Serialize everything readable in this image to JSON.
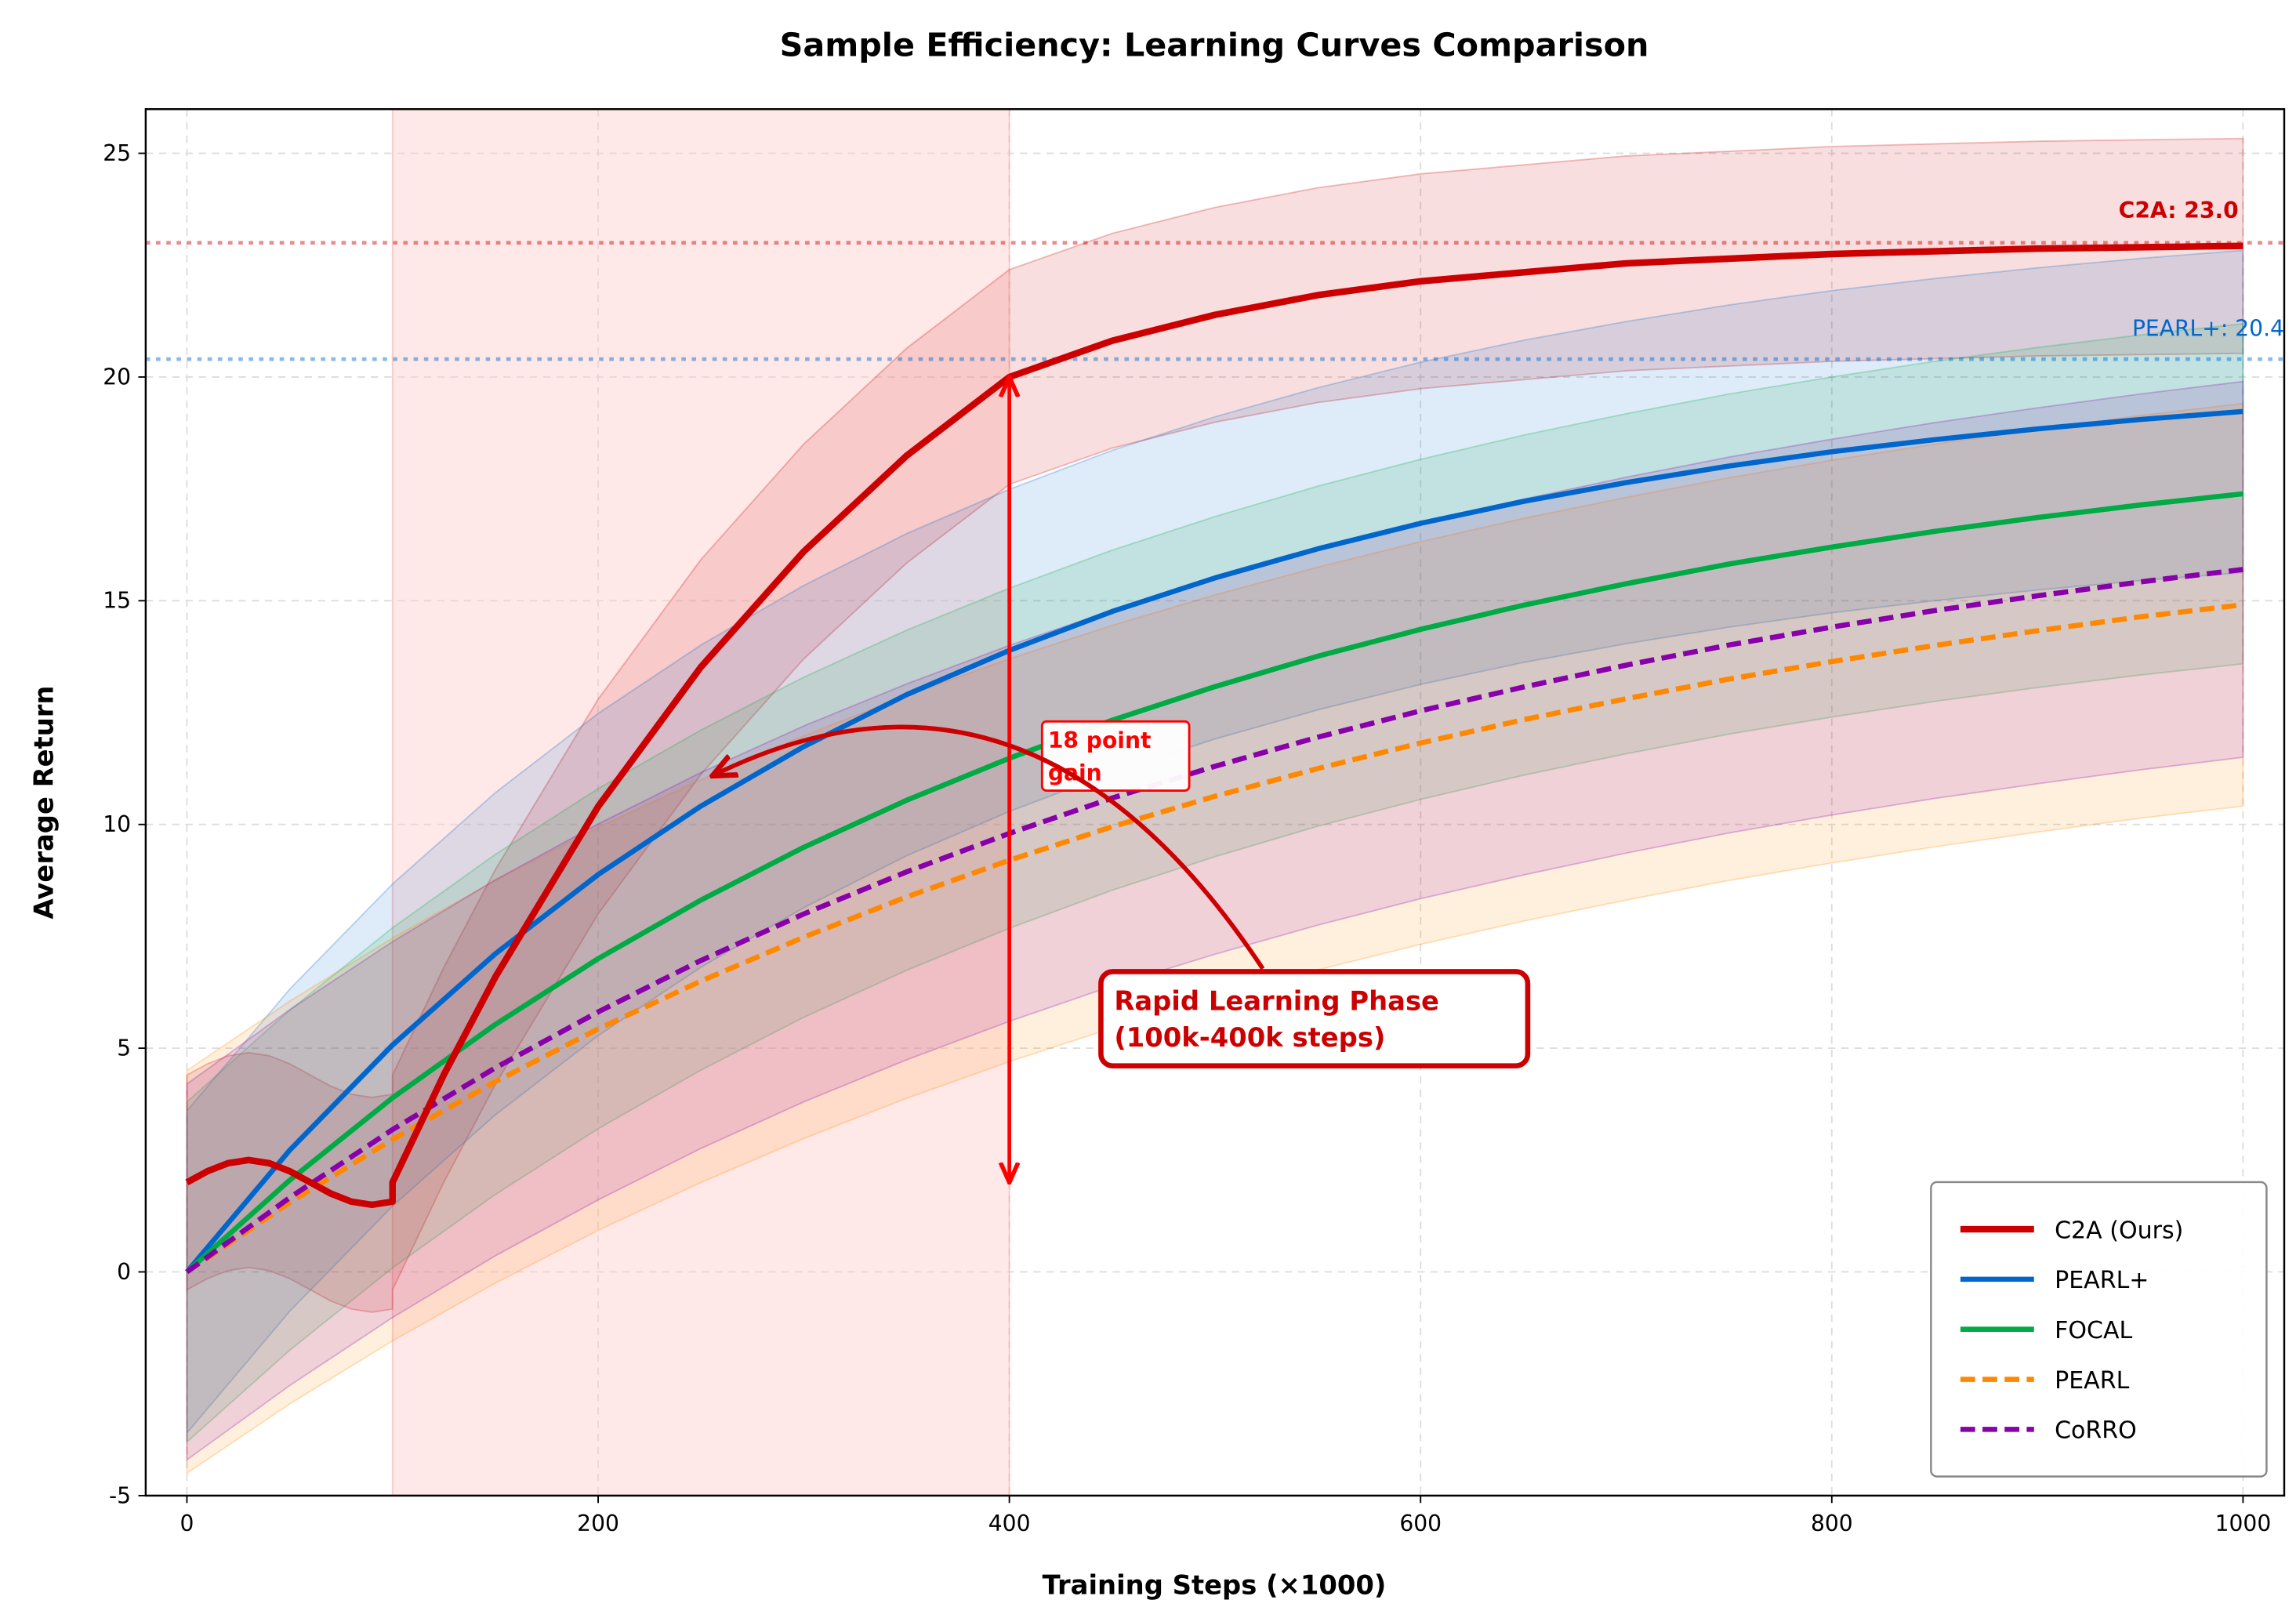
{
  "chart_data": {
    "type": "line",
    "title": "Sample Efficiency: Learning Curves Comparison",
    "xlabel": "Training Steps (×1000)",
    "ylabel": "Average Return",
    "xlim": [
      -20,
      1020
    ],
    "ylim": [
      -5,
      26
    ],
    "xticks": [
      0,
      200,
      400,
      600,
      800,
      1000
    ],
    "yticks": [
      -5,
      0,
      5,
      10,
      15,
      20,
      25
    ],
    "grid": true,
    "legend_position": "bottom-right",
    "series": [
      {
        "name": "C2A (Ours)",
        "color": "#cc0000",
        "style": "solid",
        "band_std": 2.4,
        "x": [
          0,
          10,
          20,
          30,
          40,
          50,
          60,
          70,
          80,
          90,
          100,
          100,
          125,
          150,
          200,
          250,
          300,
          350,
          400,
          450,
          500,
          550,
          600,
          700,
          800,
          900,
          1000
        ],
        "y": [
          2.0,
          2.25,
          2.43,
          2.5,
          2.43,
          2.25,
          2.0,
          1.75,
          1.57,
          1.5,
          1.57,
          2.0,
          4.41,
          6.59,
          10.4,
          13.52,
          16.1,
          18.24,
          20.0,
          20.81,
          21.39,
          21.83,
          22.14,
          22.54,
          22.75,
          22.87,
          22.93
        ]
      },
      {
        "name": "PEARL+",
        "color": "#0066cc",
        "style": "solid",
        "band_std": 3.6,
        "x": [
          0,
          50,
          100,
          150,
          200,
          250,
          300,
          350,
          400,
          450,
          500,
          550,
          600,
          650,
          700,
          750,
          800,
          850,
          900,
          950,
          1000
        ],
        "y": [
          0,
          2.72,
          5.07,
          7.11,
          8.88,
          10.41,
          11.74,
          12.9,
          13.89,
          14.76,
          15.51,
          16.16,
          16.73,
          17.22,
          17.64,
          18.01,
          18.33,
          18.6,
          18.84,
          19.05,
          19.23
        ]
      },
      {
        "name": "FOCAL",
        "color": "#00aa44",
        "style": "solid",
        "band_std": 3.8,
        "x": [
          0,
          50,
          100,
          150,
          200,
          250,
          300,
          350,
          400,
          450,
          500,
          550,
          600,
          650,
          700,
          750,
          800,
          850,
          900,
          950,
          1000
        ],
        "y": [
          0,
          2.05,
          3.89,
          5.53,
          7.0,
          8.31,
          9.49,
          10.54,
          11.48,
          12.33,
          13.08,
          13.76,
          14.36,
          14.9,
          15.38,
          15.82,
          16.2,
          16.55,
          16.86,
          17.14,
          17.39
        ]
      },
      {
        "name": "PEARL",
        "color": "#ff8800",
        "style": "dashed",
        "band_std": 4.5,
        "x": [
          0,
          50,
          100,
          150,
          200,
          250,
          300,
          350,
          400,
          450,
          500,
          550,
          600,
          650,
          700,
          750,
          800,
          850,
          900,
          950,
          1000
        ],
        "y": [
          0,
          1.55,
          2.96,
          4.25,
          5.43,
          6.5,
          7.48,
          8.38,
          9.2,
          9.95,
          10.63,
          11.25,
          11.82,
          12.34,
          12.81,
          13.25,
          13.64,
          14.0,
          14.33,
          14.64,
          14.91
        ]
      },
      {
        "name": "CoRRO",
        "color": "#8800aa",
        "style": "dashed",
        "band_std": 4.2,
        "x": [
          0,
          50,
          100,
          150,
          200,
          250,
          300,
          350,
          400,
          450,
          500,
          550,
          600,
          650,
          700,
          750,
          800,
          850,
          900,
          950,
          1000
        ],
        "y": [
          0,
          1.66,
          3.18,
          4.56,
          5.81,
          6.96,
          8.0,
          8.94,
          9.8,
          10.59,
          11.3,
          11.95,
          12.54,
          13.07,
          13.56,
          14.01,
          14.41,
          14.78,
          15.11,
          15.42,
          15.7
        ]
      }
    ],
    "reference_lines": [
      {
        "y": 23.0,
        "color": "#cc0000",
        "label": "C2A: 23.0"
      },
      {
        "y": 20.4,
        "color": "#0066cc",
        "label": "PEARL+: 20.4"
      }
    ],
    "shaded_region": {
      "x": [
        100,
        400
      ],
      "color": "#ffcccc"
    },
    "annotations": {
      "gain_arrow": {
        "x": 400,
        "y_from": 2,
        "y_to": 20,
        "label_line1": "18 point",
        "label_line2": "gain",
        "color": "#ff0000"
      },
      "phase_callout": {
        "line1": "Rapid Learning Phase",
        "line2": "(100k-400k steps)",
        "points_to": [
          250,
          11.1
        ],
        "color": "#cc0000"
      }
    }
  }
}
